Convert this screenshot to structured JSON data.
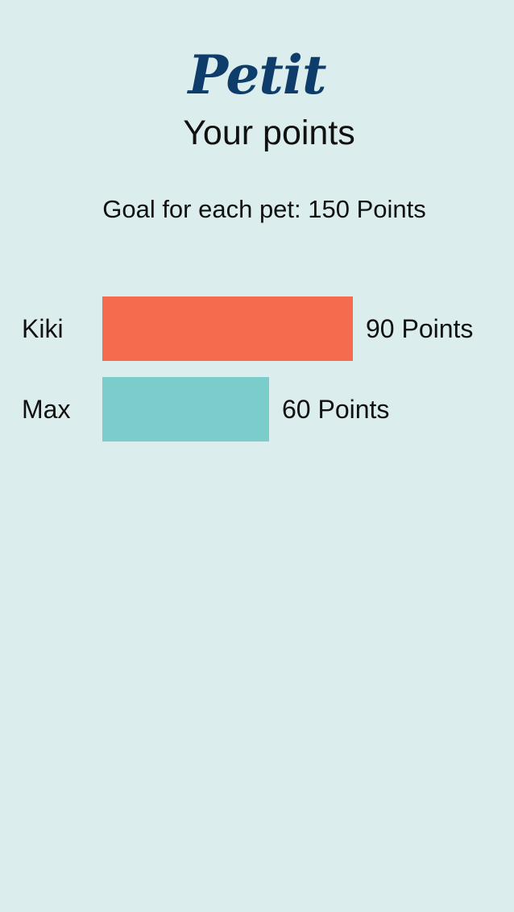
{
  "app": {
    "logo_text": "Petit",
    "title": "Your points"
  },
  "goal": {
    "text": "Goal for each pet: 150 Points"
  },
  "colors": {
    "background": "#dbeeed",
    "brand": "#0e3d6b"
  },
  "chart_data": {
    "type": "bar",
    "orientation": "horizontal",
    "categories": [
      "Kiki",
      "Max"
    ],
    "values": [
      90,
      60
    ],
    "value_labels": [
      "90 Points",
      "60 Points"
    ],
    "colors": [
      "#f46b4d",
      "#7acdca"
    ],
    "xlim": [
      0,
      150
    ],
    "grid": false
  }
}
